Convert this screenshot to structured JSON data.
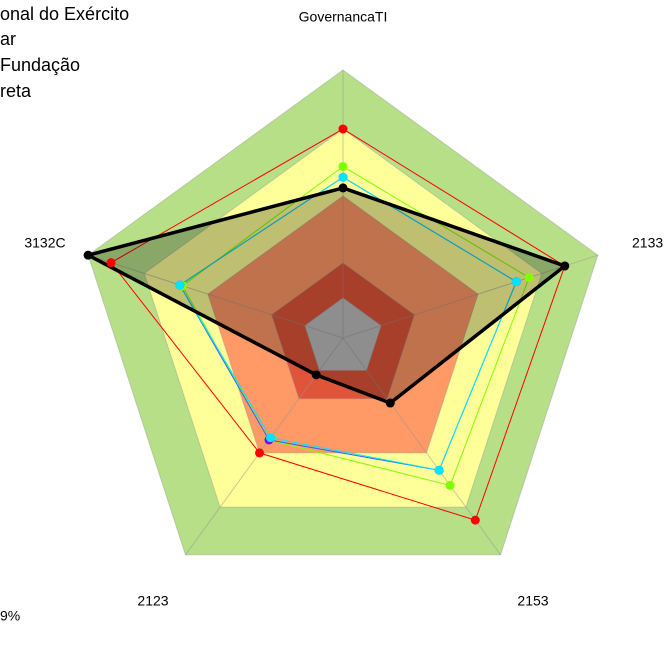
{
  "chart_data": {
    "type": "radar",
    "axes": [
      "GovernancaTI",
      "2133",
      "2153",
      "2123",
      "3132C"
    ],
    "rlim": [
      0,
      1
    ],
    "bands": [
      {
        "to": 1.0,
        "color": "#b7df88"
      },
      {
        "to": 0.78,
        "color": "#ffff99"
      },
      {
        "to": 0.53,
        "color": "#ff9966"
      },
      {
        "to": 0.28,
        "color": "#e0553a"
      },
      {
        "to": 0.15,
        "color": "#bebebe"
      }
    ],
    "series": [
      {
        "color": "#ff0000",
        "values": [
          0.78,
          0.87,
          0.84,
          0.53,
          0.91
        ]
      },
      {
        "color": "#7fff00",
        "values": [
          0.64,
          0.73,
          0.68,
          0.47,
          0.63
        ]
      },
      {
        "color": "#8000ff",
        "line_color": "#3060ff",
        "values": [
          0.6,
          0.68,
          0.61,
          0.47,
          0.64
        ]
      },
      {
        "color": "#00e5ff",
        "values": [
          0.6,
          0.68,
          0.61,
          0.46,
          0.64
        ]
      },
      {
        "color": "#000000",
        "fill": "rgba(0,0,0,0.25)",
        "values": [
          0.56,
          0.87,
          0.3,
          0.17,
          1.0
        ]
      }
    ],
    "legend": [
      "onal do Exército",
      "ar",
      "Fundação",
      "reta"
    ],
    "note": "9%"
  }
}
